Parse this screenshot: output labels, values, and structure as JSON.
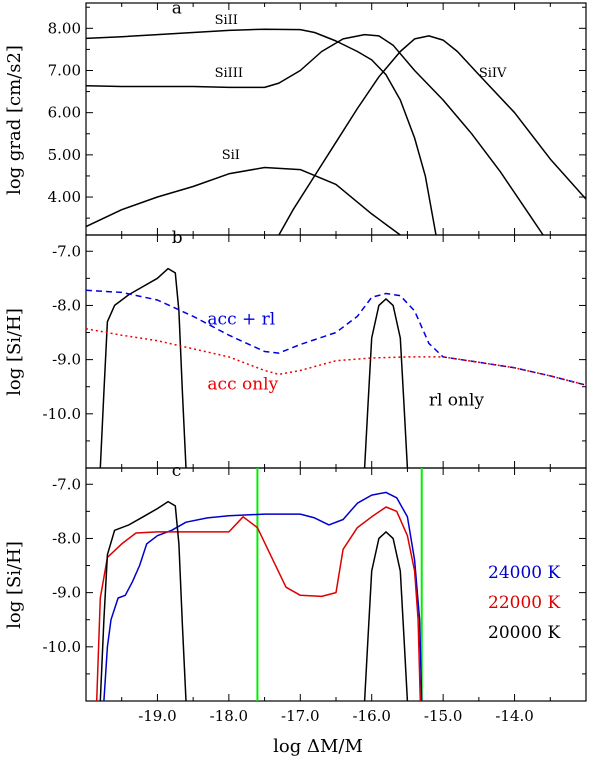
{
  "chart_data": [
    {
      "panel": "a",
      "type": "line",
      "ylabel": "log grad [cm/s2]",
      "xlim": [
        -20.0,
        -13.0
      ],
      "ylim": [
        3.1,
        8.6
      ],
      "yticks": [
        4.0,
        5.0,
        6.0,
        7.0,
        8.0
      ],
      "yticklabels": [
        "4.00",
        "5.00",
        "6.00",
        "7.00",
        "8.00"
      ],
      "series": [
        {
          "name": "SiII",
          "color": "#000000",
          "dash": "solid",
          "points": [
            [
              -20.0,
              7.76
            ],
            [
              -19.5,
              7.8
            ],
            [
              -19.0,
              7.85
            ],
            [
              -18.5,
              7.9
            ],
            [
              -18.0,
              7.95
            ],
            [
              -17.5,
              7.98
            ],
            [
              -17.0,
              7.97
            ],
            [
              -16.8,
              7.9
            ],
            [
              -16.5,
              7.7
            ],
            [
              -16.2,
              7.45
            ],
            [
              -16.0,
              7.25
            ],
            [
              -15.8,
              6.9
            ],
            [
              -15.6,
              6.3
            ],
            [
              -15.4,
              5.4
            ],
            [
              -15.25,
              4.5
            ],
            [
              -15.1,
              3.1
            ]
          ]
        },
        {
          "name": "SiIII",
          "color": "#000000",
          "dash": "solid",
          "points": [
            [
              -20.0,
              6.64
            ],
            [
              -19.5,
              6.62
            ],
            [
              -19.0,
              6.62
            ],
            [
              -18.5,
              6.62
            ],
            [
              -18.0,
              6.6
            ],
            [
              -17.5,
              6.6
            ],
            [
              -17.3,
              6.7
            ],
            [
              -17.0,
              7.0
            ],
            [
              -16.7,
              7.45
            ],
            [
              -16.4,
              7.75
            ],
            [
              -16.1,
              7.85
            ],
            [
              -15.9,
              7.82
            ],
            [
              -15.7,
              7.6
            ],
            [
              -15.4,
              7.0
            ],
            [
              -15.0,
              6.3
            ],
            [
              -14.6,
              5.5
            ],
            [
              -14.2,
              4.6
            ],
            [
              -13.8,
              3.6
            ],
            [
              -13.6,
              3.1
            ]
          ]
        },
        {
          "name": "SiIV",
          "color": "#000000",
          "dash": "solid",
          "points": [
            [
              -17.3,
              3.1
            ],
            [
              -17.1,
              3.7
            ],
            [
              -16.8,
              4.5
            ],
            [
              -16.5,
              5.3
            ],
            [
              -16.2,
              6.1
            ],
            [
              -15.9,
              6.85
            ],
            [
              -15.6,
              7.45
            ],
            [
              -15.4,
              7.75
            ],
            [
              -15.2,
              7.82
            ],
            [
              -15.0,
              7.72
            ],
            [
              -14.8,
              7.45
            ],
            [
              -14.5,
              6.9
            ],
            [
              -14.0,
              6.0
            ],
            [
              -13.5,
              4.9
            ],
            [
              -13.0,
              3.95
            ]
          ]
        },
        {
          "name": "SiI",
          "color": "#000000",
          "dash": "solid",
          "points": [
            [
              -20.0,
              3.3
            ],
            [
              -19.5,
              3.7
            ],
            [
              -19.0,
              4.0
            ],
            [
              -18.5,
              4.25
            ],
            [
              -18.0,
              4.55
            ],
            [
              -17.5,
              4.7
            ],
            [
              -17.0,
              4.65
            ],
            [
              -16.5,
              4.3
            ],
            [
              -16.0,
              3.6
            ],
            [
              -15.6,
              3.1
            ]
          ]
        }
      ],
      "annotations": [
        {
          "text": "a",
          "x": -18.8,
          "y": 8.35
        },
        {
          "text": "SiII",
          "x": -18.2,
          "y": 8.1
        },
        {
          "text": "SiIII",
          "x": -18.2,
          "y": 6.85
        },
        {
          "text": "SiIV",
          "x": -14.5,
          "y": 6.85
        },
        {
          "text": "SiI",
          "x": -18.1,
          "y": 4.9
        }
      ]
    },
    {
      "panel": "b",
      "type": "line",
      "ylabel": "log [Si/H]",
      "xlim": [
        -20.0,
        -13.0
      ],
      "ylim": [
        -11.0,
        -6.7
      ],
      "yticks": [
        -10.0,
        -9.0,
        -8.0,
        -7.0
      ],
      "yticklabels": [
        "-10.0",
        "-9.0",
        "-8.0",
        "-7.0"
      ],
      "series": [
        {
          "name": "rl only",
          "color": "#000000",
          "dash": "solid",
          "points": [
            [
              -19.8,
              -11.0
            ],
            [
              -19.75,
              -9.6
            ],
            [
              -19.7,
              -8.3
            ],
            [
              -19.6,
              -8.0
            ],
            [
              -19.4,
              -7.8
            ],
            [
              -19.2,
              -7.65
            ],
            [
              -19.0,
              -7.5
            ],
            [
              -18.85,
              -7.32
            ],
            [
              -18.75,
              -7.4
            ],
            [
              -18.7,
              -8.1
            ],
            [
              -18.65,
              -9.6
            ],
            [
              -18.6,
              -11.0
            ]
          ]
        },
        {
          "name": "rl only peak",
          "color": "#000000",
          "dash": "solid",
          "points": [
            [
              -16.1,
              -11.0
            ],
            [
              -16.05,
              -9.8
            ],
            [
              -16.0,
              -8.6
            ],
            [
              -15.9,
              -8.0
            ],
            [
              -15.8,
              -7.88
            ],
            [
              -15.7,
              -8.0
            ],
            [
              -15.6,
              -8.6
            ],
            [
              -15.55,
              -9.8
            ],
            [
              -15.5,
              -11.0
            ]
          ]
        },
        {
          "name": "acc + rl",
          "color": "#0000dd",
          "dash": "dashed",
          "points": [
            [
              -20.0,
              -7.72
            ],
            [
              -19.5,
              -7.76
            ],
            [
              -19.0,
              -7.9
            ],
            [
              -18.5,
              -8.2
            ],
            [
              -18.0,
              -8.55
            ],
            [
              -17.5,
              -8.85
            ],
            [
              -17.3,
              -8.88
            ],
            [
              -17.0,
              -8.72
            ],
            [
              -16.5,
              -8.5
            ],
            [
              -16.2,
              -8.2
            ],
            [
              -16.0,
              -7.85
            ],
            [
              -15.8,
              -7.78
            ],
            [
              -15.6,
              -7.82
            ],
            [
              -15.4,
              -8.1
            ],
            [
              -15.2,
              -8.7
            ],
            [
              -15.0,
              -8.95
            ],
            [
              -14.5,
              -9.05
            ],
            [
              -14.0,
              -9.15
            ],
            [
              -13.5,
              -9.3
            ],
            [
              -13.0,
              -9.47
            ]
          ]
        },
        {
          "name": "acc only",
          "color": "#ee0000",
          "dash": "dotted",
          "points": [
            [
              -20.0,
              -8.43
            ],
            [
              -19.5,
              -8.55
            ],
            [
              -19.0,
              -8.65
            ],
            [
              -18.5,
              -8.8
            ],
            [
              -18.0,
              -8.95
            ],
            [
              -17.5,
              -9.2
            ],
            [
              -17.3,
              -9.27
            ],
            [
              -17.0,
              -9.2
            ],
            [
              -16.5,
              -9.02
            ],
            [
              -16.0,
              -8.97
            ],
            [
              -15.5,
              -8.95
            ],
            [
              -15.0,
              -8.95
            ],
            [
              -14.5,
              -9.05
            ],
            [
              -14.0,
              -9.15
            ],
            [
              -13.5,
              -9.3
            ],
            [
              -13.0,
              -9.47
            ]
          ]
        }
      ],
      "annotations": [
        {
          "text": "b",
          "x": -18.8,
          "y": -6.85,
          "color": "#000000"
        },
        {
          "text": "acc + rl",
          "x": -18.3,
          "y": -8.35,
          "color": "#0000dd"
        },
        {
          "text": "acc only",
          "x": -18.3,
          "y": -9.55,
          "color": "#ee0000"
        },
        {
          "text": "rl only",
          "x": -15.2,
          "y": -9.85,
          "color": "#000000"
        }
      ]
    },
    {
      "panel": "c",
      "type": "line",
      "ylabel": "log [Si/H]",
      "xlabel": "log  ΔM/M",
      "xlim": [
        -20.0,
        -13.0
      ],
      "ylim": [
        -11.0,
        -6.7
      ],
      "xticks": [
        -19.0,
        -18.0,
        -17.0,
        -16.0,
        -15.0,
        -14.0
      ],
      "xticklabels": [
        "-19.0",
        "-18.0",
        "-17.0",
        "-16.0",
        "-15.0",
        "-14.0"
      ],
      "yticks": [
        -10.0,
        -9.0,
        -8.0,
        -7.0
      ],
      "yticklabels": [
        "-10.0",
        "-9.0",
        "-8.0",
        "-7.0"
      ],
      "vlines": [
        {
          "x": -17.6,
          "color": "#00ee00"
        },
        {
          "x": -15.3,
          "color": "#00ee00"
        }
      ],
      "series": [
        {
          "name": "24000 K",
          "color": "#0000cc",
          "dash": "solid",
          "points": [
            [
              -19.75,
              -11.0
            ],
            [
              -19.7,
              -10.0
            ],
            [
              -19.65,
              -9.5
            ],
            [
              -19.55,
              -9.1
            ],
            [
              -19.45,
              -9.05
            ],
            [
              -19.35,
              -8.8
            ],
            [
              -19.25,
              -8.5
            ],
            [
              -19.15,
              -8.1
            ],
            [
              -19.0,
              -7.95
            ],
            [
              -18.8,
              -7.85
            ],
            [
              -18.6,
              -7.7
            ],
            [
              -18.3,
              -7.62
            ],
            [
              -18.0,
              -7.58
            ],
            [
              -17.5,
              -7.55
            ],
            [
              -17.0,
              -7.55
            ],
            [
              -16.8,
              -7.62
            ],
            [
              -16.6,
              -7.75
            ],
            [
              -16.4,
              -7.65
            ],
            [
              -16.2,
              -7.35
            ],
            [
              -16.0,
              -7.2
            ],
            [
              -15.8,
              -7.15
            ],
            [
              -15.65,
              -7.25
            ],
            [
              -15.5,
              -7.6
            ],
            [
              -15.4,
              -8.4
            ],
            [
              -15.33,
              -9.5
            ],
            [
              -15.3,
              -11.0
            ]
          ]
        },
        {
          "name": "22000 K",
          "color": "#dd0000",
          "dash": "solid",
          "points": [
            [
              -19.85,
              -11.0
            ],
            [
              -19.8,
              -9.1
            ],
            [
              -19.7,
              -8.35
            ],
            [
              -19.5,
              -8.1
            ],
            [
              -19.3,
              -7.9
            ],
            [
              -19.0,
              -7.88
            ],
            [
              -18.5,
              -7.88
            ],
            [
              -18.0,
              -7.88
            ],
            [
              -17.8,
              -7.6
            ],
            [
              -17.6,
              -7.8
            ],
            [
              -17.4,
              -8.35
            ],
            [
              -17.2,
              -8.9
            ],
            [
              -17.0,
              -9.05
            ],
            [
              -16.7,
              -9.07
            ],
            [
              -16.5,
              -9.0
            ],
            [
              -16.4,
              -8.2
            ],
            [
              -16.2,
              -7.8
            ],
            [
              -16.0,
              -7.6
            ],
            [
              -15.8,
              -7.42
            ],
            [
              -15.65,
              -7.5
            ],
            [
              -15.5,
              -7.95
            ],
            [
              -15.4,
              -8.6
            ],
            [
              -15.35,
              -9.5
            ],
            [
              -15.32,
              -11.0
            ]
          ]
        },
        {
          "name": "20000 K",
          "color": "#000000",
          "dash": "solid",
          "points": [
            [
              -19.8,
              -11.0
            ],
            [
              -19.75,
              -9.5
            ],
            [
              -19.7,
              -8.3
            ],
            [
              -19.6,
              -7.85
            ],
            [
              -19.4,
              -7.75
            ],
            [
              -19.2,
              -7.6
            ],
            [
              -19.0,
              -7.45
            ],
            [
              -18.85,
              -7.32
            ],
            [
              -18.75,
              -7.4
            ],
            [
              -18.7,
              -8.1
            ],
            [
              -18.65,
              -9.6
            ],
            [
              -18.6,
              -11.0
            ]
          ]
        },
        {
          "name": "20000 K peak",
          "color": "#000000",
          "dash": "solid",
          "points": [
            [
              -16.1,
              -11.0
            ],
            [
              -16.05,
              -9.8
            ],
            [
              -16.0,
              -8.6
            ],
            [
              -15.9,
              -8.0
            ],
            [
              -15.8,
              -7.88
            ],
            [
              -15.7,
              -8.0
            ],
            [
              -15.6,
              -8.6
            ],
            [
              -15.55,
              -9.8
            ],
            [
              -15.5,
              -11.0
            ]
          ]
        }
      ],
      "annotations": [
        {
          "text": "c",
          "x": -18.8,
          "y": -6.85,
          "color": "#000000"
        }
      ],
      "legend": [
        {
          "text": "24000 K",
          "color": "#0000cc"
        },
        {
          "text": "22000 K",
          "color": "#dd0000"
        },
        {
          "text": "20000 K",
          "color": "#000000"
        }
      ],
      "legend_position": "right"
    }
  ]
}
